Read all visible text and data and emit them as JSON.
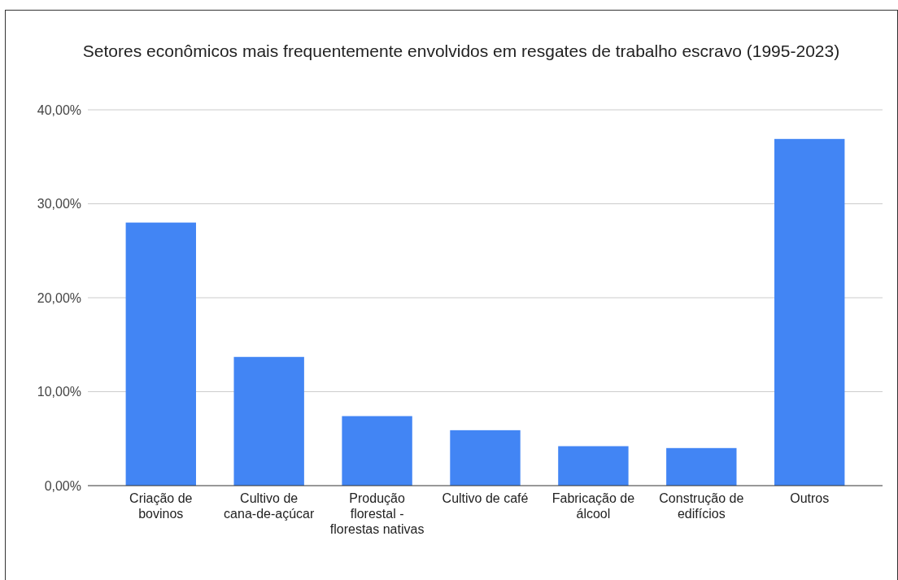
{
  "chart_data": {
    "type": "bar",
    "title": "Setores econômicos mais frequentemente envolvidos em resgates de trabalho escravo (1995-2023)",
    "categories": [
      "Criação de bovinos",
      "Cultivo de cana-de-açúcar",
      "Produção florestal - florestas nativas",
      "Cultivo de café",
      "Fabricação de álcool",
      "Construção de edifícios",
      "Outros"
    ],
    "values": [
      28.0,
      13.7,
      7.4,
      5.9,
      4.2,
      4.0,
      36.9
    ],
    "color": "#4285f4",
    "ylim": [
      0,
      40
    ],
    "yticks": [
      {
        "value": 0,
        "label": "0,00%"
      },
      {
        "value": 10,
        "label": "10,00%"
      },
      {
        "value": 20,
        "label": "20,00%"
      },
      {
        "value": 30,
        "label": "30,00%"
      },
      {
        "value": 40,
        "label": "40,00%"
      }
    ],
    "grid": "y"
  }
}
